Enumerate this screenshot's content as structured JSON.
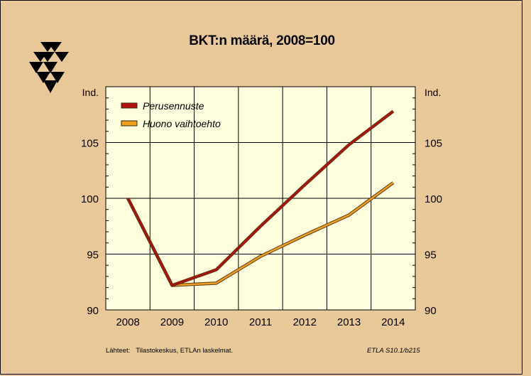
{
  "title": "BKT:n määrä, 2008=100",
  "source_label": "Lähteet:",
  "source_text": "Tilastokeskus, ETLAn laskelmat.",
  "code": "ETLA S10.1/b215",
  "chart_data": {
    "type": "line",
    "title": "BKT:n määrä, 2008=100",
    "ylabel_left": "Ind.",
    "ylabel_right": "Ind.",
    "categories": [
      "2008",
      "2009",
      "2010",
      "2011",
      "2012",
      "2013",
      "2014"
    ],
    "ylim": [
      90,
      110
    ],
    "yticks": [
      90,
      95,
      100,
      105
    ],
    "grid": true,
    "legend_position": "top-left",
    "series": [
      {
        "name": "Perusennuste",
        "color": "#b01010",
        "values": [
          100,
          92.2,
          93.6,
          97.5,
          101.2,
          104.8,
          107.8
        ]
      },
      {
        "name": "Huono vaihtoehto",
        "color": "#f0a020",
        "values": [
          100,
          92.2,
          92.4,
          94.8,
          96.7,
          98.5,
          101.4
        ]
      }
    ]
  }
}
